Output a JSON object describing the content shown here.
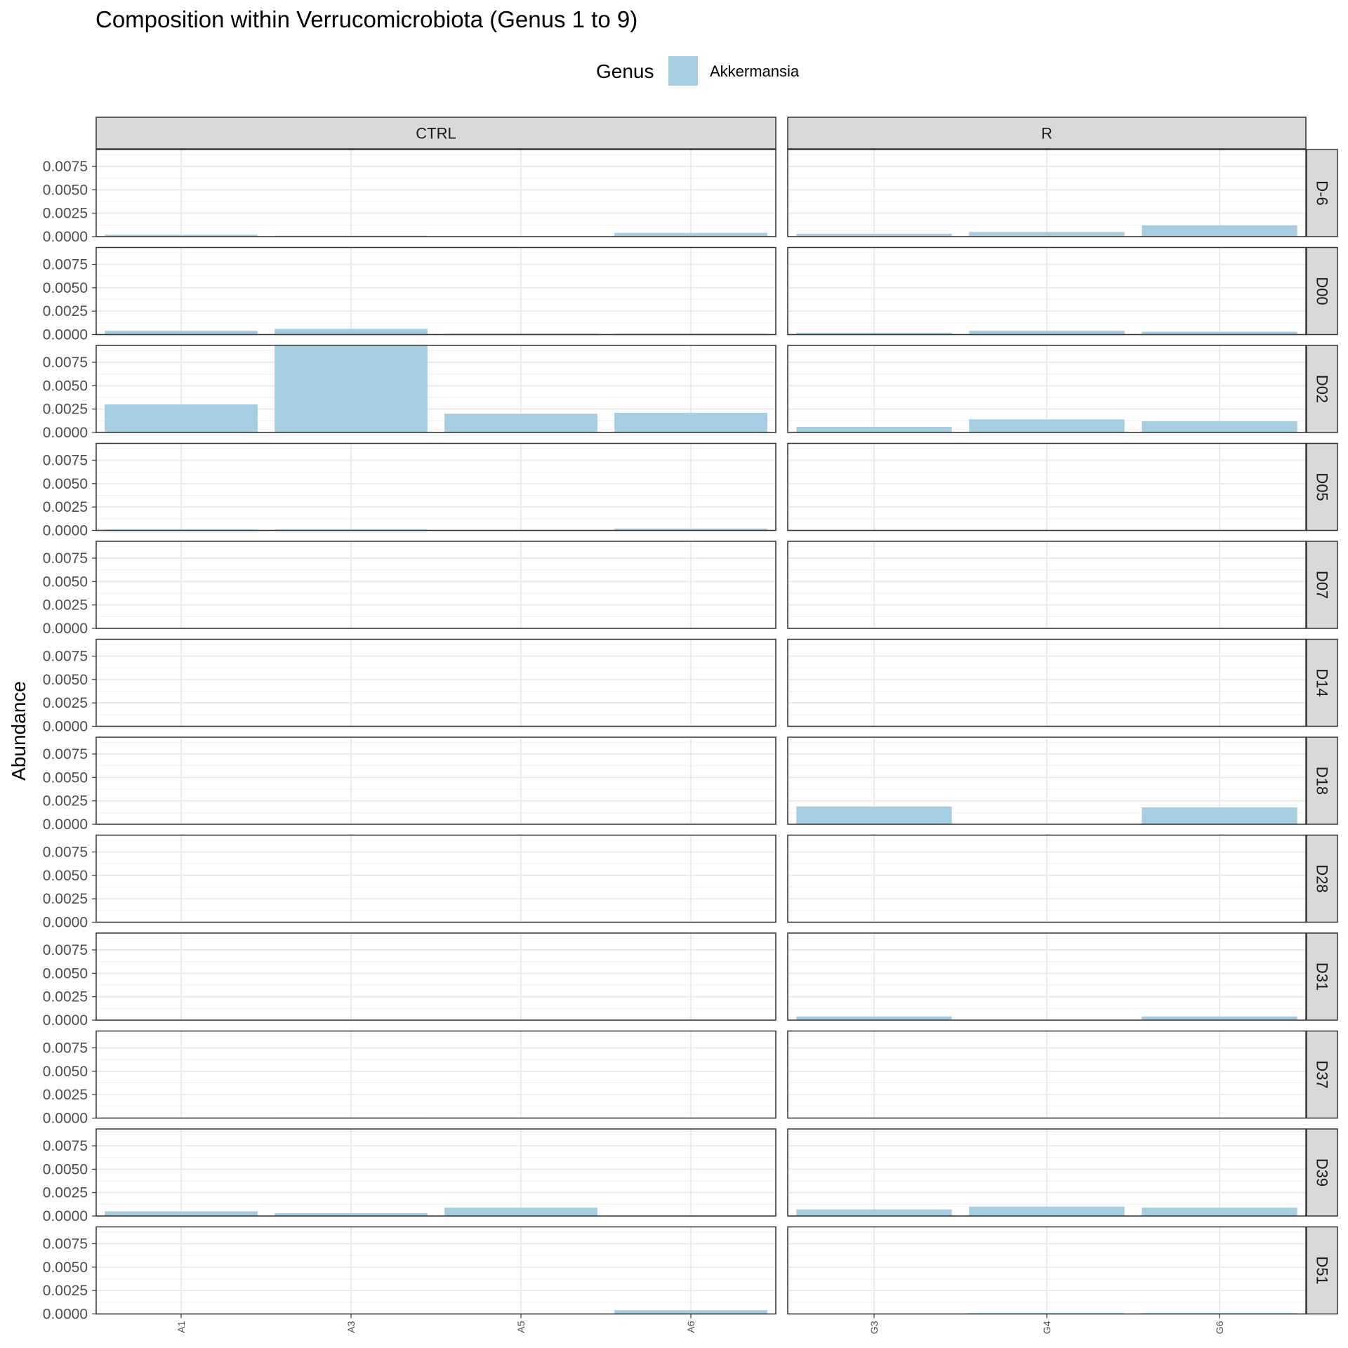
{
  "chart_data": {
    "type": "bar",
    "title": "Composition within Verrucomicrobiota (Genus 1 to 9)",
    "ylabel": "Abundance",
    "xlabel": "",
    "legend": {
      "title": "Genus",
      "position": "top",
      "items": [
        {
          "name": "Akkermansia",
          "color": "#a6cee3"
        }
      ]
    },
    "ylim": [
      0,
      0.0093
    ],
    "yticks": [
      0,
      0.0025,
      0.005,
      0.0075
    ],
    "ytick_labels": [
      "0.0000",
      "0.0025",
      "0.0050",
      "0.0075"
    ],
    "grid": true,
    "columns": [
      {
        "name": "CTRL",
        "categories": [
          "A1",
          "A3",
          "A5",
          "A6"
        ]
      },
      {
        "name": "R",
        "categories": [
          "G3",
          "G4",
          "G6"
        ]
      }
    ],
    "rows": [
      "D-6",
      "D00",
      "D02",
      "D05",
      "D07",
      "D14",
      "D18",
      "D28",
      "D31",
      "D37",
      "D39",
      "D51"
    ],
    "series": [
      {
        "name": "Akkermansia",
        "values": {
          "CTRL": [
            [
              0.0002,
              0.0001,
              3e-05,
              0.0004
            ],
            [
              0.0004,
              0.0006,
              0.0001,
              0.0001
            ],
            [
              0.003,
              0.0095,
              0.002,
              0.0021
            ],
            [
              0.0001,
              0.0001,
              0.0,
              0.0002
            ],
            [
              5e-05,
              0.0,
              0.0,
              0.0
            ],
            [
              0.0,
              0.0,
              0.0,
              0.0
            ],
            [
              0.0,
              0.0,
              0.0,
              0.0
            ],
            [
              0.0,
              0.0,
              0.0,
              0.0
            ],
            [
              0.0,
              0.0,
              0.0,
              0.0
            ],
            [
              0.0,
              5e-05,
              0.0,
              0.0
            ],
            [
              0.0005,
              0.0003,
              0.0009,
              0.0
            ],
            [
              0.0,
              5e-05,
              0.0,
              0.0004
            ]
          ],
          "R": [
            [
              0.0003,
              0.0005,
              0.0012
            ],
            [
              0.0002,
              0.0004,
              0.0003
            ],
            [
              0.0006,
              0.0014,
              0.0012
            ],
            [
              0.0,
              0.0,
              0.0
            ],
            [
              0.0,
              0.0,
              0.0
            ],
            [
              0.0,
              0.0,
              0.0
            ],
            [
              0.0019,
              0.0,
              0.0018
            ],
            [
              0.0,
              0.0,
              0.0
            ],
            [
              0.0004,
              5e-05,
              0.0004
            ],
            [
              0.0,
              0.0,
              0.0
            ],
            [
              0.0007,
              0.001,
              0.0009
            ],
            [
              0.0,
              0.0001,
              0.0001
            ]
          ]
        }
      }
    ]
  }
}
